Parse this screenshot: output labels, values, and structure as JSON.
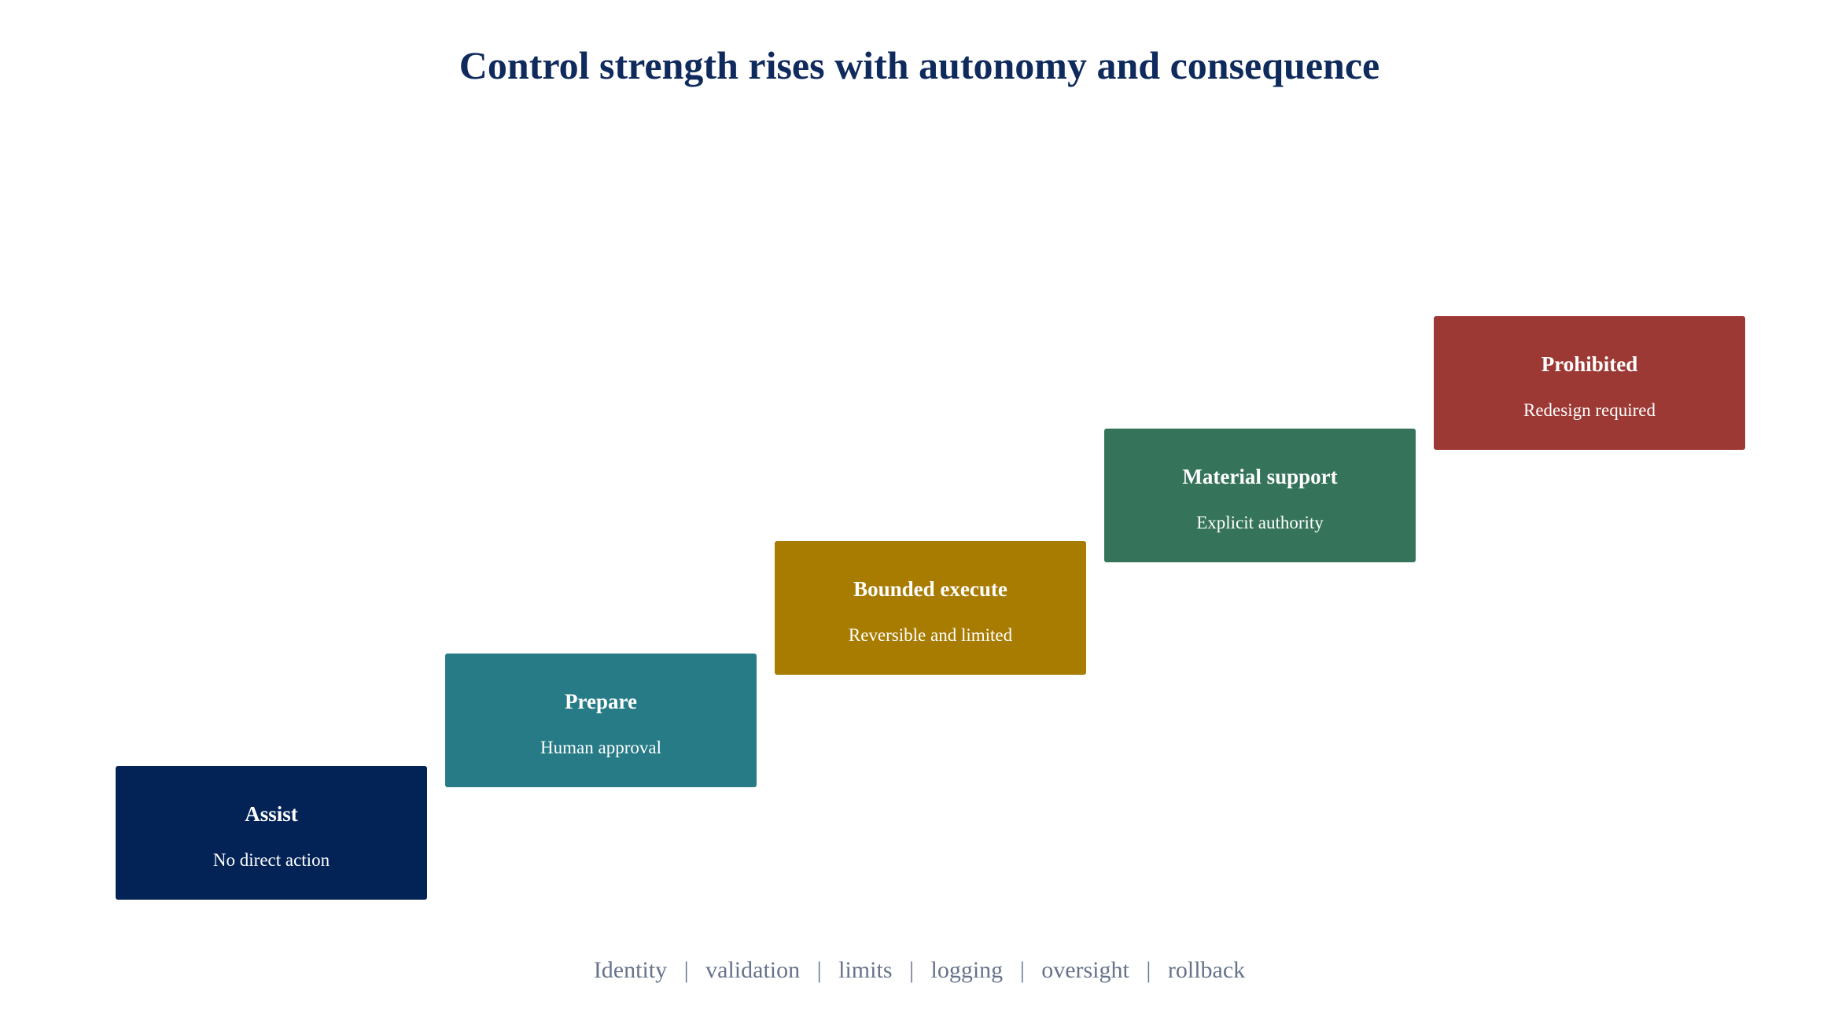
{
  "title": "Control strength rises with autonomy and consequence",
  "steps": [
    {
      "label": "Assist",
      "sub": "No direct action",
      "color": "#032357"
    },
    {
      "label": "Prepare",
      "sub": "Human approval",
      "color": "#267b86"
    },
    {
      "label": "Bounded execute",
      "sub": "Reversible and limited",
      "color": "#a87b01"
    },
    {
      "label": "Material support",
      "sub": "Explicit authority",
      "color": "#35745a"
    },
    {
      "label": "Prohibited",
      "sub": "Redesign required",
      "color": "#9c3934"
    }
  ],
  "footer": {
    "items": [
      "Identity",
      "validation",
      "limits",
      "logging",
      "oversight",
      "rollback"
    ],
    "separator": "|"
  }
}
